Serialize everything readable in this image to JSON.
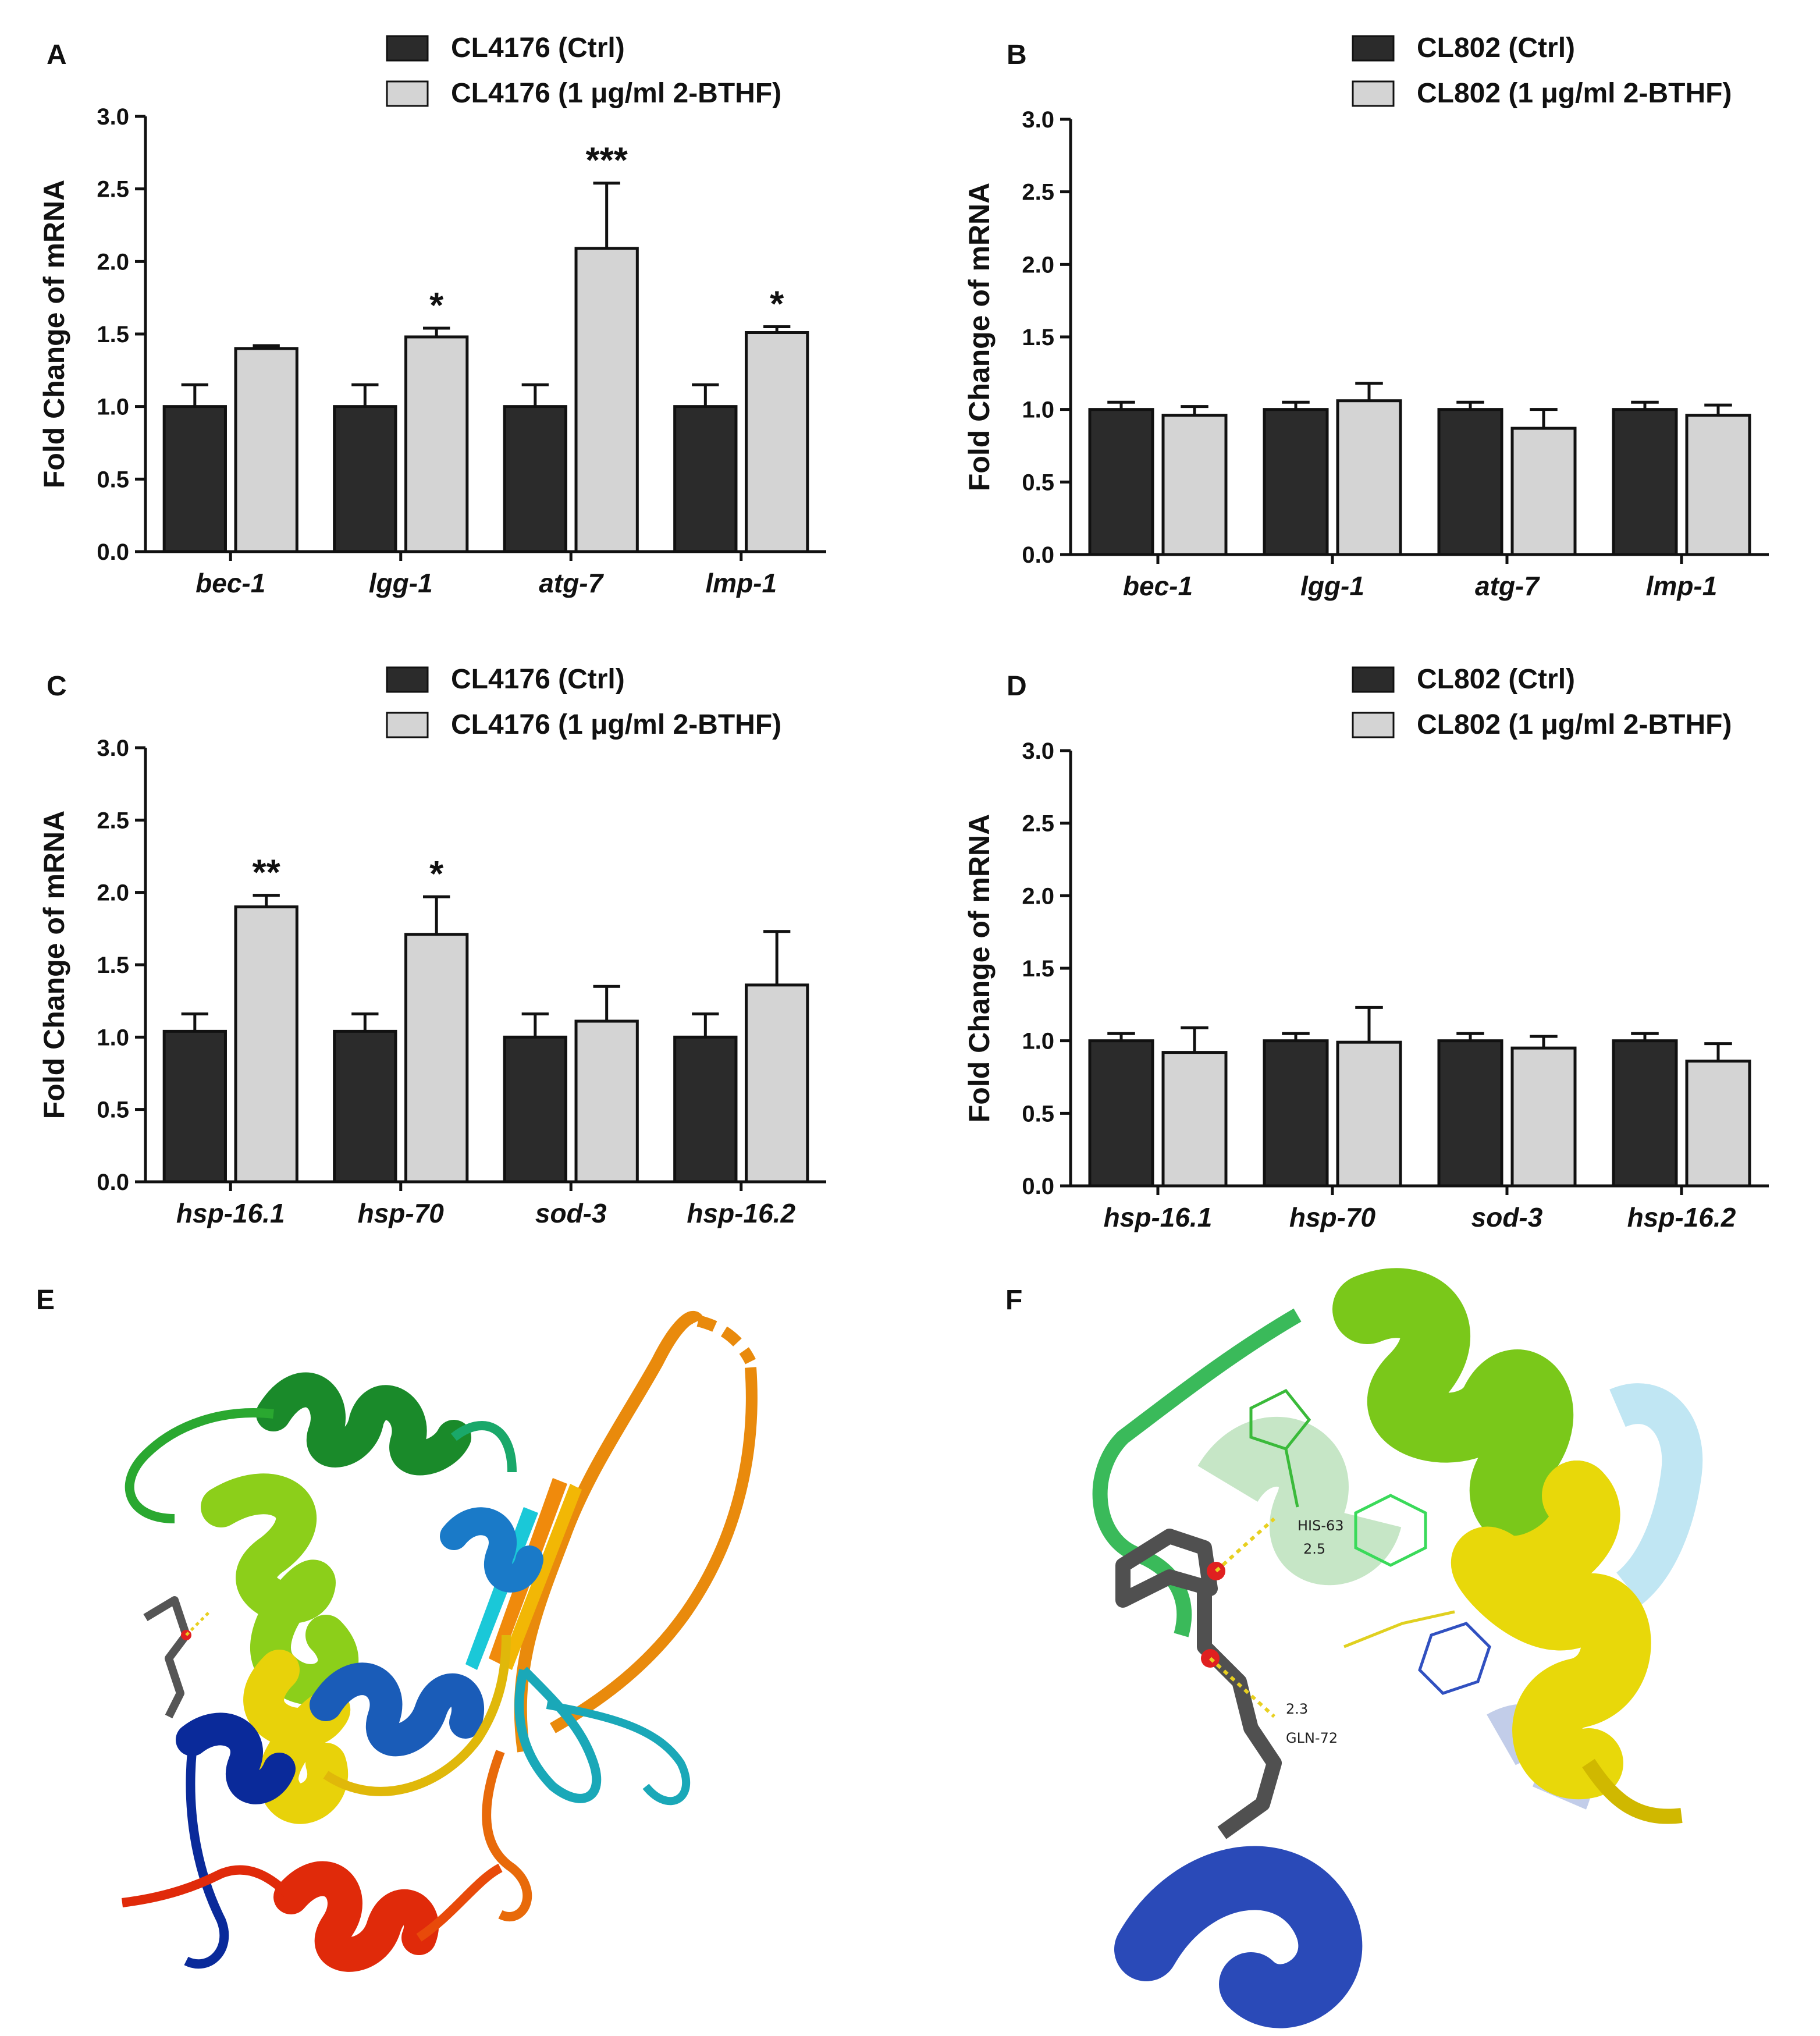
{
  "colors": {
    "ctrl": "#2b2b2b",
    "treated": "#d4d4d4",
    "axis": "#111111"
  },
  "chart_data": [
    {
      "panel": "A",
      "type": "bar",
      "categories": [
        "bec-1",
        "lgg-1",
        "atg-7",
        "lmp-1"
      ],
      "ylabel": "Fold Change of mRNA",
      "ylim": [
        0,
        3.0
      ],
      "yticks": [
        "0.0",
        "0.5",
        "1.0",
        "1.5",
        "2.0",
        "2.5",
        "3.0"
      ],
      "legend": "top",
      "series": [
        {
          "name": "CL4176 (Ctrl)",
          "values": [
            1.0,
            1.0,
            1.0,
            1.0
          ],
          "errors": [
            0.15,
            0.15,
            0.15,
            0.15
          ]
        },
        {
          "name": "CL4176 (1 μg/ml 2-BTHF)",
          "values": [
            1.4,
            1.48,
            2.09,
            1.51
          ],
          "errors": [
            0.02,
            0.06,
            0.45,
            0.04
          ],
          "sig": [
            "",
            "*",
            "***",
            "*"
          ]
        }
      ]
    },
    {
      "panel": "B",
      "type": "bar",
      "categories": [
        "bec-1",
        "lgg-1",
        "atg-7",
        "lmp-1"
      ],
      "ylabel": "Fold Change of mRNA",
      "ylim": [
        0,
        3.0
      ],
      "yticks": [
        "0.0",
        "0.5",
        "1.0",
        "1.5",
        "2.0",
        "2.5",
        "3.0"
      ],
      "legend": "top",
      "series": [
        {
          "name": "CL802 (Ctrl)",
          "values": [
            1.0,
            1.0,
            1.0,
            1.0
          ],
          "errors": [
            0.05,
            0.05,
            0.05,
            0.05
          ]
        },
        {
          "name": "CL802 (1 μg/ml 2-BTHF)",
          "values": [
            0.96,
            1.06,
            0.87,
            0.96
          ],
          "errors": [
            0.06,
            0.12,
            0.13,
            0.07
          ],
          "sig": [
            "",
            "",
            "",
            ""
          ]
        }
      ]
    },
    {
      "panel": "C",
      "type": "bar",
      "categories": [
        "hsp-16.1",
        "hsp-70",
        "sod-3",
        "hsp-16.2"
      ],
      "ylabel": "Fold Change of mRNA",
      "ylim": [
        0,
        3.0
      ],
      "yticks": [
        "0.0",
        "0.5",
        "1.0",
        "1.5",
        "2.0",
        "2.5",
        "3.0"
      ],
      "legend": "top",
      "series": [
        {
          "name": "CL4176 (Ctrl)",
          "values": [
            1.04,
            1.04,
            1.0,
            1.0
          ],
          "errors": [
            0.12,
            0.12,
            0.16,
            0.16
          ]
        },
        {
          "name": "CL4176 (1 μg/ml 2-BTHF)",
          "values": [
            1.9,
            1.71,
            1.11,
            1.36
          ],
          "errors": [
            0.08,
            0.26,
            0.24,
            0.37
          ],
          "sig": [
            "**",
            "*",
            "",
            ""
          ]
        }
      ]
    },
    {
      "panel": "D",
      "type": "bar",
      "categories": [
        "hsp-16.1",
        "hsp-70",
        "sod-3",
        "hsp-16.2"
      ],
      "ylabel": "Fold Change of mRNA",
      "ylim": [
        0,
        3.0
      ],
      "yticks": [
        "0.0",
        "0.5",
        "1.0",
        "1.5",
        "2.0",
        "2.5",
        "3.0"
      ],
      "legend": "top",
      "series": [
        {
          "name": "CL802 (Ctrl)",
          "values": [
            1.0,
            1.0,
            1.0,
            1.0
          ],
          "errors": [
            0.05,
            0.05,
            0.05,
            0.05
          ]
        },
        {
          "name": "CL802 (1 μg/ml 2-BTHF)",
          "values": [
            0.92,
            0.99,
            0.95,
            0.86
          ],
          "errors": [
            0.17,
            0.24,
            0.08,
            0.12
          ],
          "sig": [
            "",
            "",
            "",
            ""
          ]
        }
      ]
    }
  ],
  "panels": {
    "A": "A",
    "B": "B",
    "C": "C",
    "D": "D",
    "E": "E",
    "F": "F"
  },
  "structure": {
    "his_label": "HIS-63",
    "gln_label": "GLN-72",
    "dist1": "2.5",
    "dist2": "2.3"
  }
}
